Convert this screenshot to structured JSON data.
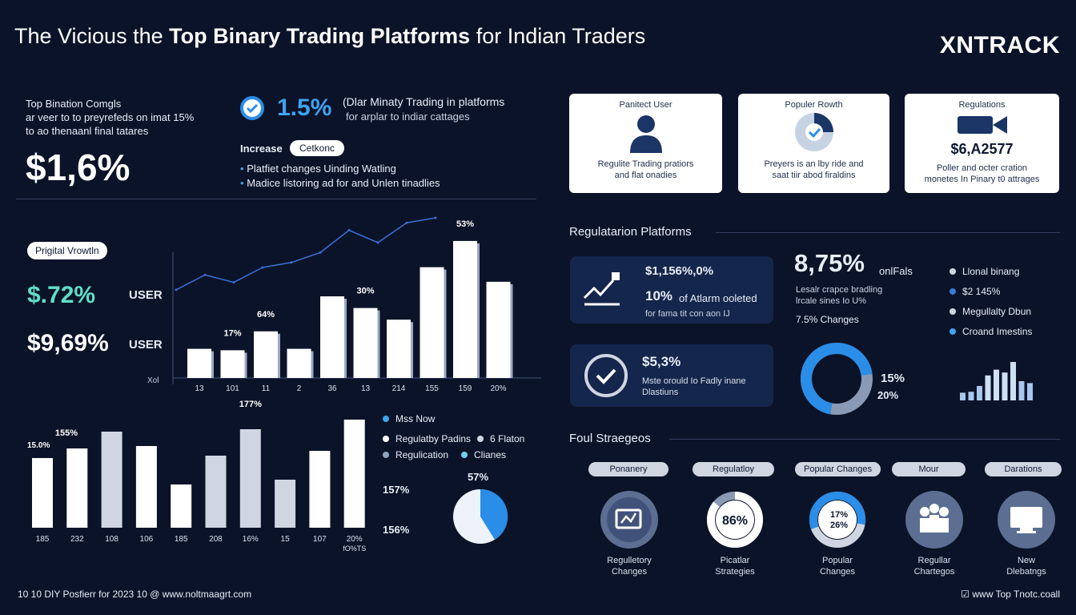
{
  "header": {
    "title_plain": "The Vicious the ",
    "title_bold": "Top Binary Trading Platforms",
    "title_tail": " for Indian Traders",
    "brand": "XNTRACK"
  },
  "intro": {
    "lead_title": "Top Bination Comgls",
    "lead_line1": "ar veer to to preyrefeds on imat 15%",
    "lead_line2": "to ao thenaanl final tatares",
    "big_value": "$1,6%",
    "stat_value": "1.5%",
    "stat_line1": "(Dlar Minaty Trading in platforms",
    "stat_line2": "for arplar to indiar cattages",
    "increase_label": "Increase",
    "increase_pill": "Cetkonc",
    "bullet1": "Platfiet changes Uinding Watling",
    "bullet2": "Madice listoring ad for and Unlen tinadlies"
  },
  "growth": {
    "pill": "Prigital Vrowtln",
    "value1": "$.72%",
    "value1_label": "USER",
    "value2": "$9,69%",
    "value2_label": "USER"
  },
  "cards": [
    {
      "title": "Panitect User",
      "body1": "Regulite Trading pratiors",
      "body2": "and flat onadies"
    },
    {
      "title": "Populer Rowth",
      "body1": "Preyers is an lby ride and",
      "body2": "saat tiir abod firaldins"
    },
    {
      "title": "Regulations",
      "value": "$6,A2577",
      "body1": "Poller and octer cration",
      "body2": "monetes In Pinary t0 attrages"
    }
  ],
  "regulatory": {
    "heading": "Regulatarion Platforms",
    "box1_value": "$1,156%,0%",
    "box1_sub": "10%",
    "box1_sub2": "of Atlarm ooleted",
    "box1_sub3": "for fama tit con aon IJ",
    "box2_value": "$5,3%",
    "box2_line1": "Mste orould Io Fadly inane",
    "box2_line2": "Dlastiuns",
    "big_value": "8,75%",
    "big_suffix": "onlFals",
    "big_line1": "Lesalr crapce bradling",
    "big_line2": "lrcale sines Io U%",
    "big_line3": "7.5% Changes",
    "donut_label1": "15%",
    "donut_label2": "20%"
  },
  "legend_right": [
    {
      "label": "Llonal binang",
      "color": "#cfd6e2"
    },
    {
      "label": "$2 145%",
      "color": "#3a7bd5"
    },
    {
      "label": "Megullalty Dbun",
      "color": "#cfd6e2"
    },
    {
      "label": "Croand Imestins",
      "color": "#3fa3f0"
    }
  ],
  "legend_mid": {
    "item1": "Mss Now",
    "item2": "Regulatby Padins",
    "item3": "6 Flaton",
    "item4": "Regulication",
    "item5": "Clianes",
    "pie_label": "57%",
    "side_label1": "157%",
    "side_label2": "156%",
    "color1": "#3fa3f0",
    "color2": "#ffffff",
    "color3": "#cfd6e2",
    "color4": "#8fa3c0",
    "color5": "#6ed3f0"
  },
  "strategies": {
    "heading": "Foul Straegeos",
    "items": [
      {
        "tag": "Ponanery",
        "cap1": "Regulletory",
        "cap2": "Changes"
      },
      {
        "tag": "Regulatloy",
        "center": "86%",
        "cap1": "Picatlar",
        "cap2": "Strategies"
      },
      {
        "tag": "Popular Changes",
        "center": "17%",
        "center2": "26%",
        "cap1": "Popular",
        "cap2": "Changes"
      },
      {
        "tag": "Mour",
        "cap1": "Regullar",
        "cap2": "Chartegos"
      },
      {
        "tag": "Darations",
        "cap1": "New",
        "cap2": "Dlebatngs"
      }
    ]
  },
  "footer": {
    "left": "10 10 DIY Posfierr for 2023 10 @ www.noltmaagrt.com",
    "right": "www Top Tnotc.coall"
  },
  "chart_data": [
    {
      "type": "bar",
      "overlay": "line",
      "categories": [
        "13",
        "101",
        "11",
        "2",
        "36",
        "13",
        "214",
        "155",
        "159",
        "20%"
      ],
      "values": [
        20,
        19,
        32,
        20,
        56,
        48,
        40,
        76,
        94,
        66
      ],
      "line": [
        42,
        54,
        48,
        60,
        64,
        72,
        90,
        80,
        96,
        100
      ],
      "labels": [
        {
          "index": 1,
          "text": "17%"
        },
        {
          "index": 2,
          "text": "64%"
        },
        {
          "index": 5,
          "text": "30%"
        },
        {
          "index": 8,
          "text": "53%"
        }
      ],
      "ylabel": "Xol",
      "ylim": [
        0,
        100
      ]
    },
    {
      "type": "bar",
      "categories": [
        "185",
        "232",
        "108",
        "106",
        "185",
        "208",
        "16%",
        "15",
        "107",
        "20%"
      ],
      "values": [
        58,
        66,
        80,
        68,
        36,
        60,
        82,
        40,
        64,
        90
      ],
      "colors": [
        "#ffffff",
        "#ffffff",
        "#cfd6e2",
        "#ffffff",
        "#ffffff",
        "#cfd6e2",
        "#cfd6e2",
        "#cfd6e2",
        "#ffffff",
        "#ffffff"
      ],
      "labels": [
        {
          "index": 0,
          "text": "155%"
        },
        {
          "index": 6,
          "text": "177%"
        }
      ],
      "side_label": "15.0%",
      "last_sublabel": "fO%TS",
      "ylim": [
        0,
        100
      ]
    },
    {
      "type": "bar",
      "values": [
        16,
        18,
        30,
        52,
        64,
        58,
        80,
        40,
        36
      ],
      "colors": [
        "#a9c7ee",
        "#a9c7ee",
        "#a9c7ee",
        "#cfe0f5",
        "#cfe0f5",
        "#cfe0f5",
        "#cfe0f5",
        "#a9c7ee",
        "#a9c7ee"
      ],
      "ylim": [
        0,
        100
      ]
    }
  ]
}
